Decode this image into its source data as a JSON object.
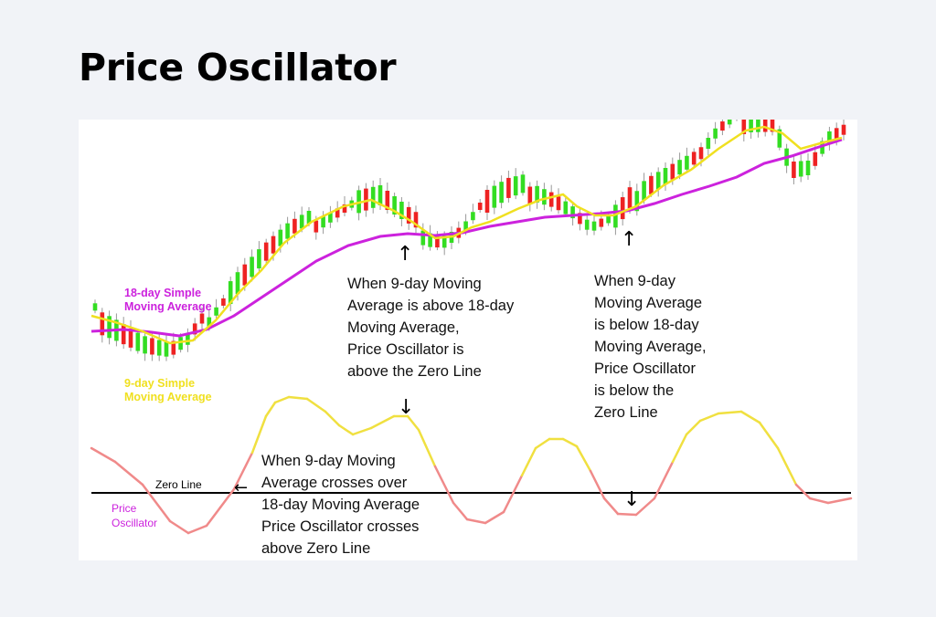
{
  "title": "Price Oscillator",
  "colors": {
    "up_candle": "#33dd22",
    "down_candle": "#ee2222",
    "ma9": "#f0e020",
    "ma18": "#cc22dd",
    "osc_positive": "#f0e040",
    "osc_negative": "#f08a8a",
    "zero_line": "#000000"
  },
  "chart_data": [
    {
      "type": "candlestick",
      "title": "",
      "series": [
        {
          "name": "9-day Simple Moving Average"
        },
        {
          "name": "18-day Simple Moving Average"
        }
      ],
      "legend": {
        "ma18": [
          "18-day Simple",
          "Moving Average"
        ],
        "ma9": [
          "9-day Simple",
          "Moving Average"
        ]
      },
      "annotations": [
        {
          "id": "above",
          "lines": [
            "When 9-day Moving",
            "Average is above 18-day",
            "Moving Average,",
            "Price Oscillator is",
            "above the Zero Line"
          ]
        },
        {
          "id": "below",
          "lines": [
            "When 9-day",
            "Moving Average",
            "is below 18-day",
            "Moving Average,",
            "Price Oscillator",
            "is below the",
            "Zero Line"
          ]
        }
      ]
    },
    {
      "type": "line",
      "series": [
        {
          "name": "Price Oscillator"
        }
      ],
      "labels": {
        "zero_line": "Zero Line",
        "oscillator": [
          "Price",
          "Oscillator"
        ]
      },
      "annotations": [
        {
          "id": "cross",
          "lines": [
            "When 9-day Moving",
            "Average crosses over",
            "18-day Moving Average",
            "Price Oscillator crosses",
            "above Zero Line"
          ]
        }
      ],
      "arrows": [
        "↑",
        "↑",
        "↓",
        "↓",
        "←"
      ]
    }
  ]
}
